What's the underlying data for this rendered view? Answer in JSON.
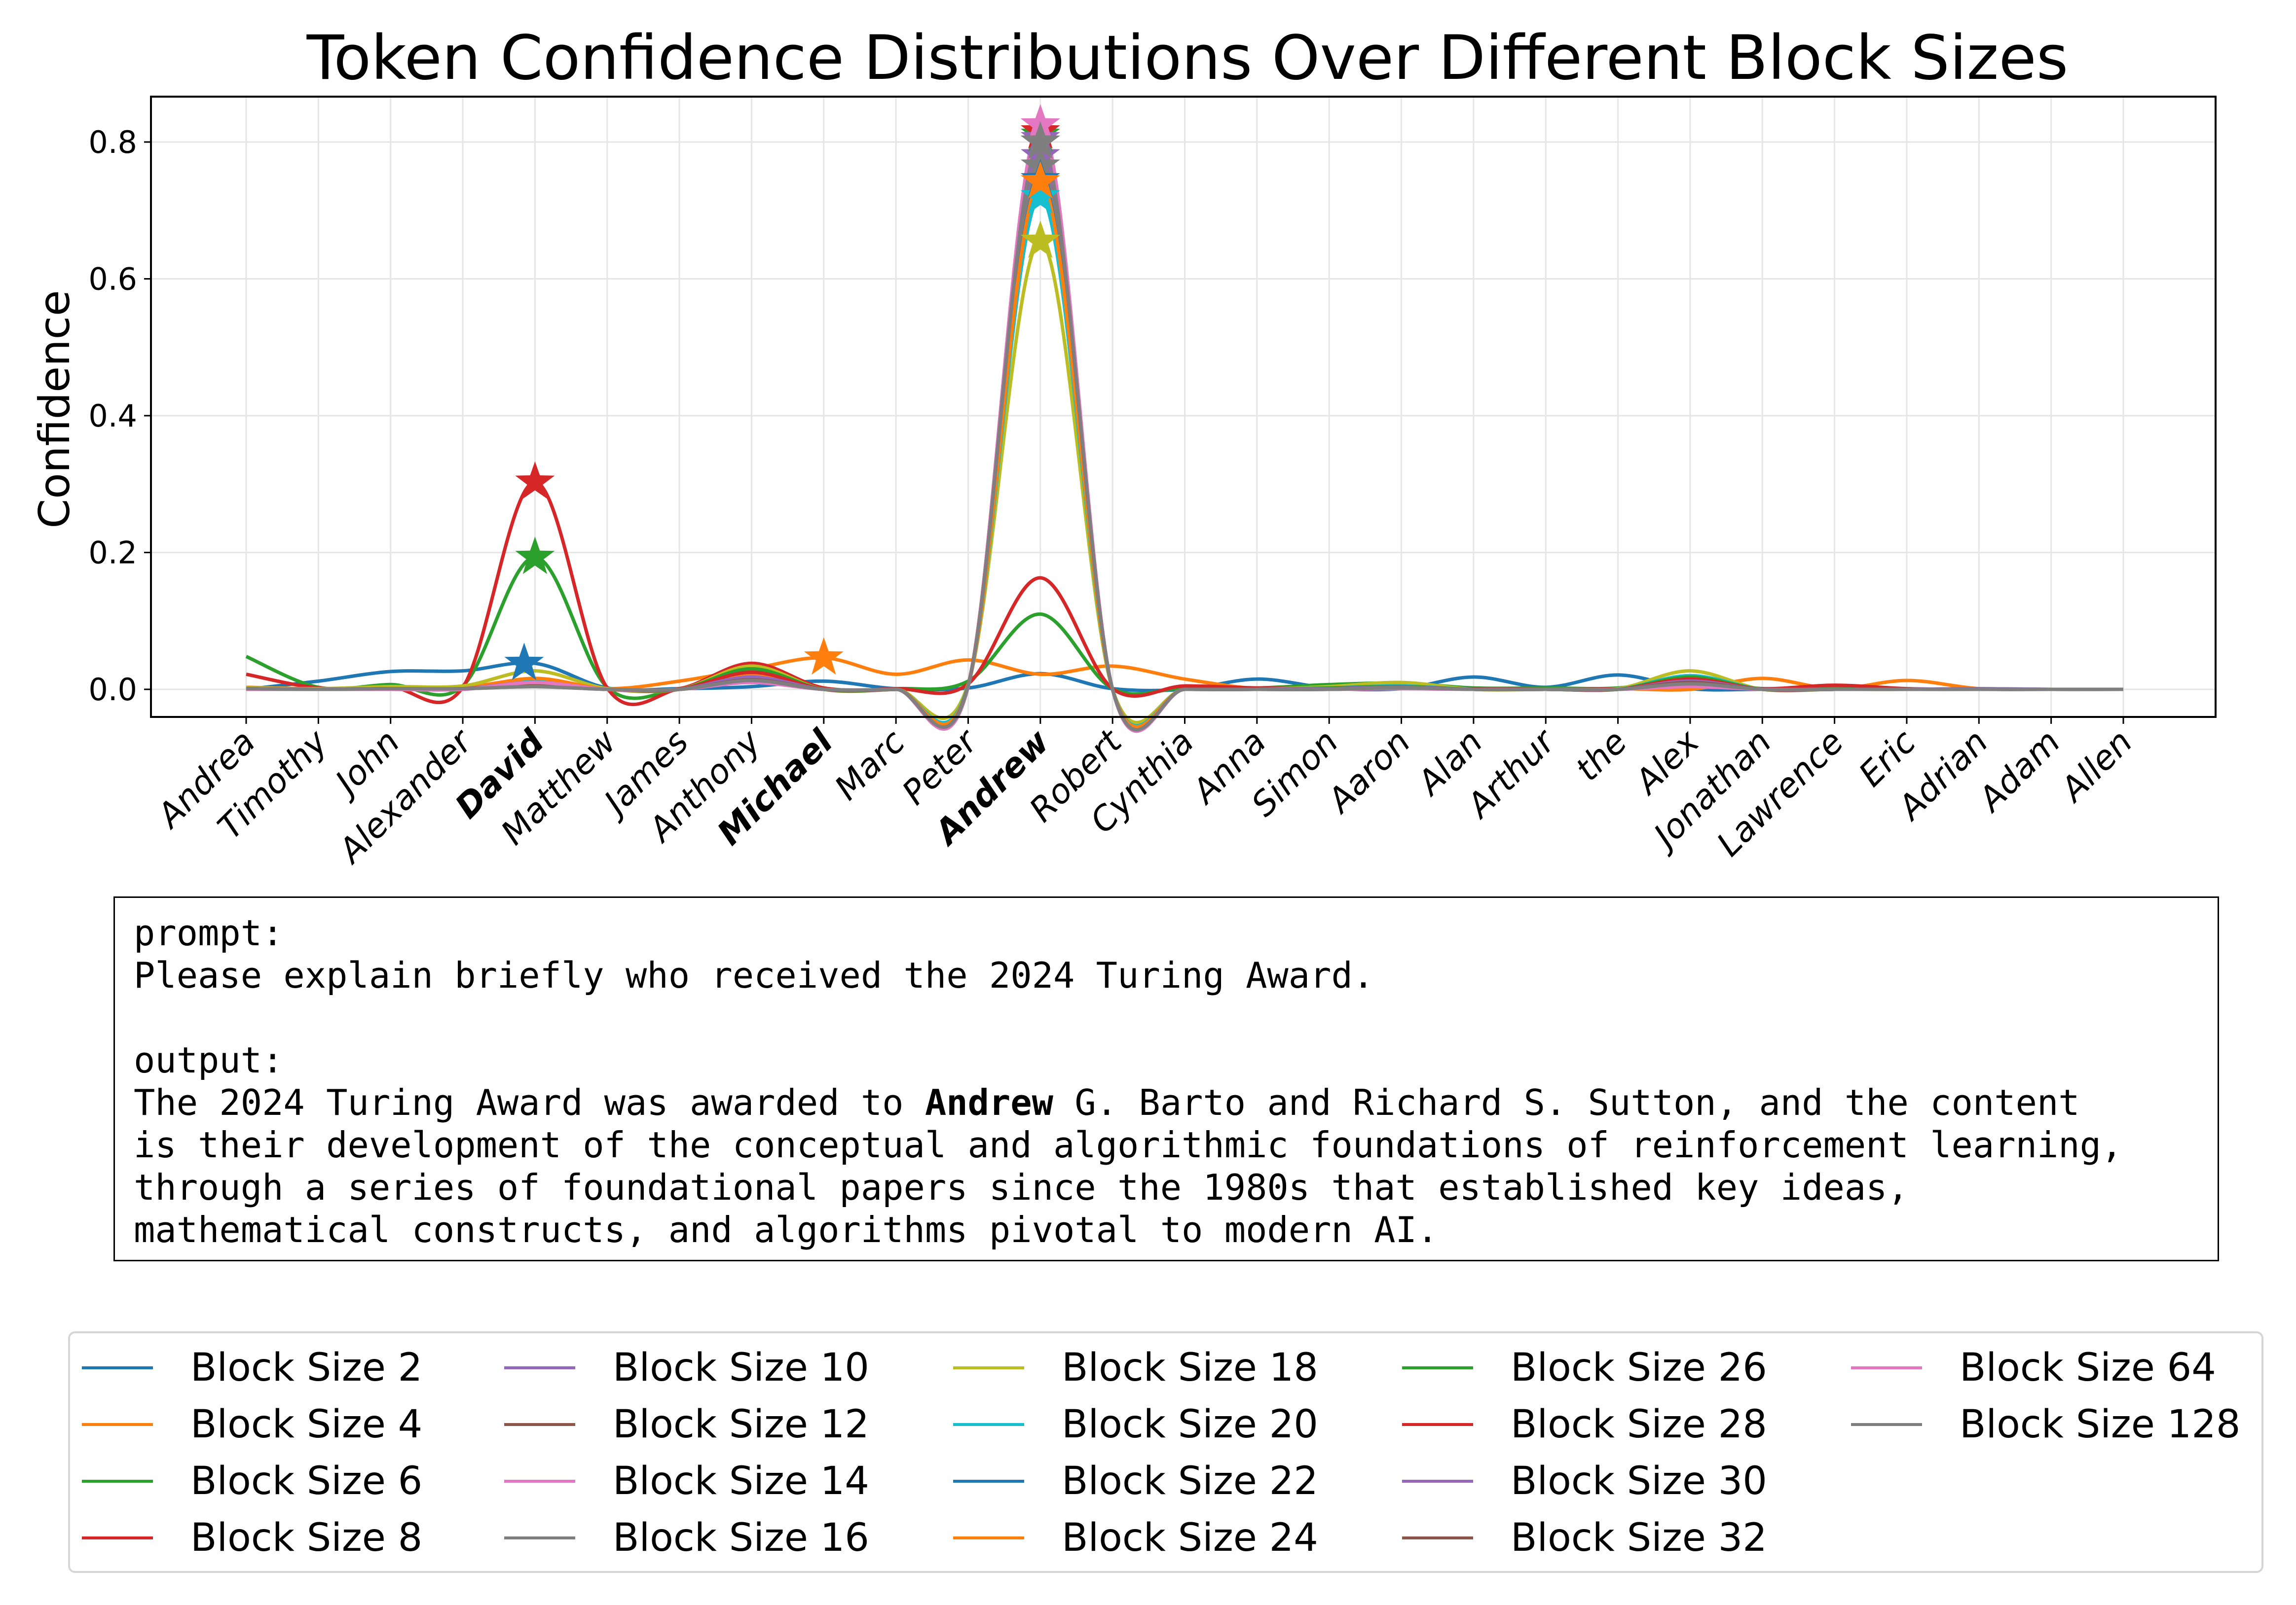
{
  "chart_data": {
    "type": "line",
    "title": "Token Confidence Distributions Over Different Block Sizes",
    "xlabel": "",
    "ylabel": "Confidence",
    "ylim": [
      -0.04,
      0.87
    ],
    "yticks": [
      0.0,
      0.2,
      0.4,
      0.6,
      0.8
    ],
    "ytick_labels": [
      "0.0",
      "0.2",
      "0.4",
      "0.6",
      "0.8"
    ],
    "grid": true,
    "legend_position": "bottom",
    "categories": [
      "Andrea",
      "Timothy",
      "John",
      "Alexander",
      "David",
      "Matthew",
      "James",
      "Anthony",
      "Michael",
      "Marc",
      "Peter",
      "Andrew",
      "Robert",
      "Cynthia",
      "Anna",
      "Simon",
      "Aaron",
      "Alan",
      "Arthur",
      "the",
      "Alex",
      "Jonathan",
      "Lawrence",
      "Eric",
      "Adrian",
      "Adam",
      "Allen"
    ],
    "bold_categories": [
      "David",
      "Michael",
      "Andrew"
    ],
    "series": [
      {
        "name": "Block Size 2",
        "color": "#1f77b4",
        "values": [
          0.0,
          0.012,
          0.026,
          0.027,
          0.038,
          0.002,
          0.001,
          0.004,
          0.012,
          0.001,
          0.002,
          0.023,
          0.001,
          0.0,
          0.015,
          0.002,
          0.001,
          0.018,
          0.003,
          0.021,
          0.001,
          0.0,
          0.0,
          0.0,
          0.0,
          0.0,
          0.0
        ],
        "star": {
          "category": "David",
          "value": 0.038,
          "offset": -0.15
        }
      },
      {
        "name": "Block Size 4",
        "color": "#ff7f0e",
        "values": [
          0.003,
          0.001,
          0.003,
          0.003,
          0.015,
          0.001,
          0.012,
          0.03,
          0.046,
          0.022,
          0.043,
          0.022,
          0.034,
          0.015,
          0.001,
          0.001,
          0.005,
          0.001,
          0.0,
          0.001,
          0.0,
          0.016,
          0.001,
          0.013,
          0.001,
          0.0,
          0.0
        ],
        "star": {
          "category": "Michael",
          "value": 0.046,
          "offset": 0
        }
      },
      {
        "name": "Block Size 6",
        "color": "#2ca02c",
        "values": [
          0.048,
          0.003,
          0.007,
          0.005,
          0.193,
          0.003,
          0.001,
          0.035,
          0.002,
          0.001,
          0.012,
          0.11,
          0.001,
          0.002,
          0.002,
          0.007,
          0.009,
          0.002,
          0.002,
          0.002,
          0.015,
          0.001,
          0.001,
          0.0,
          0.0,
          0.0,
          0.0
        ],
        "star": {
          "category": "David",
          "value": 0.193,
          "offset": 0
        }
      },
      {
        "name": "Block Size 8",
        "color": "#d62728",
        "values": [
          0.022,
          0.002,
          0.003,
          0.003,
          0.303,
          0.002,
          0.001,
          0.038,
          0.002,
          0.001,
          0.008,
          0.163,
          0.001,
          0.005,
          0.002,
          0.001,
          0.001,
          0.001,
          0.0,
          0.001,
          0.01,
          0.001,
          0.006,
          0.001,
          0.0,
          0.0,
          0.0
        ],
        "star": {
          "category": "David",
          "value": 0.303,
          "offset": 0
        }
      },
      {
        "name": "Block Size 10",
        "color": "#9467bd",
        "values": [
          0.001,
          0.0,
          0.001,
          0.001,
          0.012,
          0.0,
          0.0,
          0.02,
          0.0,
          0.0,
          0.005,
          0.78,
          0.0,
          0.0,
          0.0,
          0.0,
          0.002,
          0.0,
          0.0,
          0.0,
          0.012,
          0.0,
          0.0,
          0.0,
          0.001,
          0.0,
          0.0
        ],
        "star": {
          "category": "Andrew",
          "value": 0.78,
          "offset": 0
        }
      },
      {
        "name": "Block Size 12",
        "color": "#8c564b",
        "values": [
          0.001,
          0.0,
          0.001,
          0.001,
          0.006,
          0.0,
          0.0,
          0.015,
          0.0,
          0.0,
          0.005,
          0.8,
          0.0,
          0.0,
          0.0,
          0.0,
          0.002,
          0.0,
          0.0,
          0.0,
          0.01,
          0.0,
          0.0,
          0.0,
          0.0,
          0.0,
          0.0
        ],
        "star": {
          "category": "Andrew",
          "value": 0.8,
          "offset": 0
        }
      },
      {
        "name": "Block Size 14",
        "color": "#e377c2",
        "values": [
          0.001,
          0.0,
          0.0,
          0.0,
          0.012,
          0.0,
          0.0,
          0.012,
          0.0,
          0.0,
          0.004,
          0.825,
          0.0,
          0.0,
          0.0,
          0.0,
          0.001,
          0.0,
          0.0,
          0.0,
          0.005,
          0.0,
          0.0,
          0.0,
          0.0,
          0.0,
          0.0
        ],
        "star": {
          "category": "Andrew",
          "value": 0.825,
          "offset": 0
        }
      },
      {
        "name": "Block Size 16",
        "color": "#7f7f7f",
        "values": [
          0.001,
          0.0,
          0.001,
          0.001,
          0.004,
          0.0,
          0.0,
          0.014,
          0.0,
          0.0,
          0.005,
          0.765,
          0.0,
          0.0,
          0.0,
          0.0,
          0.002,
          0.0,
          0.0,
          0.0,
          0.008,
          0.0,
          0.0,
          0.0,
          0.0,
          0.0,
          0.0
        ],
        "star": {
          "category": "Andrew",
          "value": 0.765,
          "offset": 0
        }
      },
      {
        "name": "Block Size 18",
        "color": "#bcbd22",
        "values": [
          0.002,
          0.001,
          0.004,
          0.005,
          0.027,
          0.001,
          0.0,
          0.034,
          0.0,
          0.0,
          0.008,
          0.655,
          0.0,
          0.0,
          0.0,
          0.004,
          0.01,
          0.0,
          0.0,
          0.001,
          0.027,
          0.0,
          0.0,
          0.0,
          0.0,
          0.0,
          0.0
        ],
        "star": {
          "category": "Andrew",
          "value": 0.655,
          "offset": 0
        }
      },
      {
        "name": "Block Size 20",
        "color": "#17becf",
        "values": [
          0.001,
          0.0,
          0.001,
          0.001,
          0.012,
          0.0,
          0.0,
          0.027,
          0.0,
          0.0,
          0.006,
          0.72,
          0.0,
          0.0,
          0.0,
          0.002,
          0.005,
          0.0,
          0.0,
          0.0,
          0.02,
          0.0,
          0.0,
          0.0,
          0.0,
          0.0,
          0.0
        ],
        "star": {
          "category": "Andrew",
          "value": 0.72,
          "offset": 0
        }
      },
      {
        "name": "Block Size 22",
        "color": "#1f77b4",
        "values": [
          0.001,
          0.0,
          0.001,
          0.001,
          0.01,
          0.0,
          0.0,
          0.022,
          0.0,
          0.0,
          0.005,
          0.745,
          0.0,
          0.0,
          0.0,
          0.001,
          0.004,
          0.0,
          0.0,
          0.0,
          0.016,
          0.0,
          0.0,
          0.0,
          0.0,
          0.0,
          0.0
        ],
        "star": {
          "category": "Andrew",
          "value": 0.745,
          "offset": 0
        }
      },
      {
        "name": "Block Size 24",
        "color": "#ff7f0e",
        "values": [
          0.001,
          0.0,
          0.001,
          0.001,
          0.016,
          0.0,
          0.0,
          0.022,
          0.0,
          0.0,
          0.005,
          0.742,
          0.0,
          0.0,
          0.0,
          0.001,
          0.004,
          0.0,
          0.0,
          0.0,
          0.014,
          0.0,
          0.0,
          0.0,
          0.0,
          0.0,
          0.0
        ],
        "star": {
          "category": "Andrew",
          "value": 0.742,
          "offset": 0
        }
      },
      {
        "name": "Block Size 26",
        "color": "#2ca02c",
        "values": [
          0.001,
          0.0,
          0.001,
          0.001,
          0.008,
          0.0,
          0.0,
          0.03,
          0.0,
          0.0,
          0.006,
          0.81,
          0.0,
          0.0,
          0.0,
          0.002,
          0.004,
          0.0,
          0.0,
          0.0,
          0.018,
          0.0,
          0.0,
          0.0,
          0.0,
          0.0,
          0.0
        ],
        "star": {
          "category": "Andrew",
          "value": 0.81,
          "offset": 0
        }
      },
      {
        "name": "Block Size 28",
        "color": "#d62728",
        "values": [
          0.001,
          0.0,
          0.001,
          0.001,
          0.008,
          0.0,
          0.0,
          0.025,
          0.0,
          0.0,
          0.006,
          0.815,
          0.0,
          0.0,
          0.0,
          0.001,
          0.003,
          0.0,
          0.0,
          0.0,
          0.015,
          0.0,
          0.0,
          0.0,
          0.0,
          0.0,
          0.0
        ],
        "star": {
          "category": "Andrew",
          "value": 0.815,
          "offset": 0
        }
      },
      {
        "name": "Block Size 30",
        "color": "#9467bd",
        "values": [
          0.001,
          0.0,
          0.001,
          0.001,
          0.01,
          0.0,
          0.0,
          0.018,
          0.0,
          0.0,
          0.005,
          0.805,
          0.0,
          0.0,
          0.0,
          0.001,
          0.003,
          0.0,
          0.0,
          0.0,
          0.012,
          0.0,
          0.0,
          0.0,
          0.001,
          0.0,
          0.0
        ],
        "star": {
          "category": "Andrew",
          "value": 0.805,
          "offset": 0
        }
      },
      {
        "name": "Block Size 32",
        "color": "#8c564b",
        "values": [
          0.001,
          0.0,
          0.001,
          0.001,
          0.006,
          0.0,
          0.0,
          0.014,
          0.0,
          0.0,
          0.005,
          0.8,
          0.0,
          0.0,
          0.0,
          0.0,
          0.002,
          0.0,
          0.0,
          0.0,
          0.01,
          0.0,
          0.0,
          0.0,
          0.0,
          0.0,
          0.0
        ],
        "star": {
          "category": "Andrew",
          "value": 0.8,
          "offset": 0
        }
      },
      {
        "name": "Block Size 64",
        "color": "#e377c2",
        "values": [
          0.0,
          0.0,
          0.0,
          0.0,
          0.01,
          0.0,
          0.0,
          0.01,
          0.0,
          0.0,
          0.004,
          0.825,
          0.0,
          0.0,
          0.0,
          0.0,
          0.001,
          0.0,
          0.0,
          0.0,
          0.004,
          0.0,
          0.0,
          0.0,
          0.0,
          0.0,
          0.0
        ],
        "star": {
          "category": "Andrew",
          "value": 0.825,
          "offset": 0
        }
      },
      {
        "name": "Block Size 128",
        "color": "#7f7f7f",
        "values": [
          0.001,
          0.0,
          0.001,
          0.001,
          0.004,
          0.0,
          0.0,
          0.013,
          0.0,
          0.0,
          0.005,
          0.8,
          0.0,
          0.0,
          0.0,
          0.0,
          0.002,
          0.0,
          0.0,
          0.0,
          0.008,
          0.0,
          0.0,
          0.0,
          0.0,
          0.0,
          0.0
        ],
        "star": {
          "category": "Andrew",
          "value": 0.8,
          "offset": 0
        }
      }
    ]
  },
  "textbox": {
    "prompt_label": "prompt:",
    "prompt": "Please explain briefly who received the 2024 Turing Award.",
    "output_label": "output:",
    "output_before": "The 2024 Turing Award was awarded to ",
    "output_highlight": "Andrew",
    "output_after": " G. Barto and Richard S. Sutton, and the content\nis their development of the conceptual and algorithmic foundations of reinforcement learning,\nthrough a series of foundational papers since the 1980s that established key ideas,\nmathematical constructs, and algorithms pivotal to modern AI."
  }
}
